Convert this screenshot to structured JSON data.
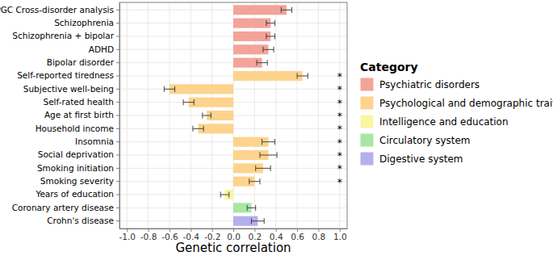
{
  "chart_data": {
    "type": "bar",
    "orientation": "horizontal",
    "grid": true,
    "legend": "right",
    "legend_title": "Category",
    "x_label": "Genetic correlation",
    "categories": [
      "PGC Cross-disorder analysis",
      "Schizophrenia",
      "Schizophrenia + bipolar",
      "ADHD",
      "Bipolar disorder",
      "Self-reported tiredness",
      "Subjective well-being",
      "Self-rated health",
      "Age at first birth",
      "Household income",
      "Insomnia",
      "Social deprivation",
      "Smoking initiation",
      "Smoking severity",
      "Years of education",
      "Coronary artery disease",
      "Crohn's disease"
    ],
    "series": [
      {
        "name": "Psychiatric disorders",
        "color": "#F4A39A",
        "values": [
          0.5,
          0.35,
          0.35,
          0.33,
          0.27,
          null,
          null,
          null,
          null,
          null,
          null,
          null,
          null,
          null,
          null,
          null,
          null
        ],
        "errors": [
          0.05,
          0.04,
          0.04,
          0.05,
          0.05,
          null,
          null,
          null,
          null,
          null,
          null,
          null,
          null,
          null,
          null,
          null,
          null
        ]
      },
      {
        "name": "Psychological and demographic traits",
        "color": "#FDD38D",
        "values": [
          null,
          null,
          null,
          null,
          null,
          0.65,
          -0.6,
          -0.42,
          -0.25,
          -0.33,
          0.33,
          0.33,
          0.28,
          0.2,
          null,
          null,
          null
        ],
        "errors": [
          null,
          null,
          null,
          null,
          null,
          0.05,
          0.05,
          0.05,
          0.04,
          0.05,
          0.06,
          0.08,
          0.07,
          0.05,
          null,
          null,
          null
        ]
      },
      {
        "name": "Intelligence and education",
        "color": "#FAF5A0",
        "values": [
          null,
          null,
          null,
          null,
          null,
          null,
          null,
          null,
          null,
          null,
          null,
          null,
          null,
          null,
          -0.08,
          null,
          null
        ],
        "errors": [
          null,
          null,
          null,
          null,
          null,
          null,
          null,
          null,
          null,
          null,
          null,
          null,
          null,
          null,
          0.04,
          null,
          null
        ]
      },
      {
        "name": "Circulatory system",
        "color": "#A8E6A3",
        "values": [
          null,
          null,
          null,
          null,
          null,
          null,
          null,
          null,
          null,
          null,
          null,
          null,
          null,
          null,
          null,
          0.17,
          null
        ],
        "errors": [
          null,
          null,
          null,
          null,
          null,
          null,
          null,
          null,
          null,
          null,
          null,
          null,
          null,
          null,
          null,
          0.04,
          null
        ]
      },
      {
        "name": "Digestive system",
        "color": "#B3B0EE",
        "values": [
          null,
          null,
          null,
          null,
          null,
          null,
          null,
          null,
          null,
          null,
          null,
          null,
          null,
          null,
          null,
          null,
          0.23
        ],
        "errors": [
          null,
          null,
          null,
          null,
          null,
          null,
          null,
          null,
          null,
          null,
          null,
          null,
          null,
          null,
          null,
          null,
          0.06
        ]
      }
    ],
    "significance": [
      null,
      null,
      null,
      null,
      null,
      "*",
      "*",
      "*",
      "*",
      "*",
      "*",
      "*",
      "*",
      "*",
      null,
      null,
      null
    ],
    "significance_x": 1.0,
    "xlim": [
      -1.07,
      1.07
    ],
    "xticks": [
      {
        "value": -1.0,
        "label": "-1.0"
      },
      {
        "value": -0.8,
        "label": "-0.8"
      },
      {
        "value": -0.6,
        "label": "-0.6"
      },
      {
        "value": -0.4,
        "label": "-0.4"
      },
      {
        "value": -0.2,
        "label": "-0.2"
      },
      {
        "value": 0,
        "label": "0.0"
      },
      {
        "value": 0.2,
        "label": "0.2"
      },
      {
        "value": 0.4,
        "label": "0.4"
      },
      {
        "value": 0.6,
        "label": "0.6"
      },
      {
        "value": 0.8,
        "label": "0.8"
      },
      {
        "value": 1.0,
        "label": "1.0"
      }
    ]
  }
}
